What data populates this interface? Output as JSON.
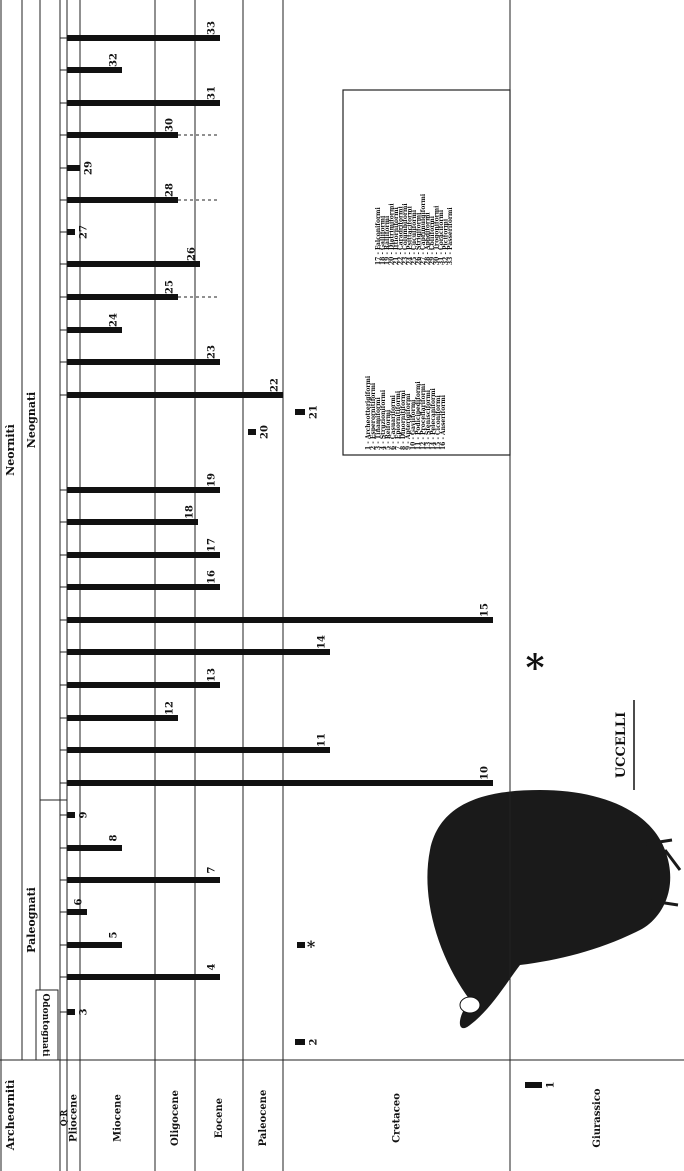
{
  "title": "UCCELLI",
  "groups": {
    "neornithes": "Neornitì",
    "archeornithes": "Archeornitì",
    "paleognathae": "Paleognati",
    "neognathae": "Neognati",
    "odontognathae": "Odontognati"
  },
  "periods": [
    "Q·R",
    "Pliocene",
    "Miocene",
    "Oligocene",
    "Eocene",
    "Paleocene",
    "Cretaceo",
    "Giurassico"
  ],
  "bar_labels": [
    "1",
    "2",
    "3",
    "4",
    "5",
    "6",
    "7",
    "8",
    "9",
    "10",
    "11",
    "12",
    "13",
    "14",
    "15",
    "16",
    "17",
    "18",
    "19",
    "20",
    "21",
    "22",
    "23",
    "24",
    "25",
    "26",
    "27",
    "28",
    "29",
    "30",
    "31",
    "32",
    "33"
  ],
  "uncertain_mark": "*",
  "big_mark": "*",
  "legend": [
    "1 - Archeotterigiformi",
    "2 - Esperornitiformi",
    "3 - Tinamiformi",
    "4 - Struzioniformi",
    "5 - Reiformi",
    "6 - Casuariformi",
    "7 - Epiornitiformi",
    "8 - Dinornitiformi",
    "9 - Apterigiformi",
    "10 - Gaviiformi",
    "11 - Podicipediformi",
    "12 - Procellariformi",
    "13 - Sfenisciformi",
    "14 - Pelecaniformi",
    "15 - Ciconiformi",
    "16 - Anseriformi",
    "17 - Falconiformi",
    "18 - Galliformi",
    "19 - Ralliformi",
    "20 - Diatrimiformi",
    "21 - Ittiorniformi",
    "22 - Caradriformi",
    "23 - Columbiformi",
    "24 - Psittaciformi",
    "25 - Cuculiformi",
    "26 - Strigiformi",
    "27 - Caprimulgiformi",
    "28 - Apodiformi",
    "29 - Coliiformi",
    "30 - Trogoniformi",
    "31 - Coraciformi",
    "32 - Piciformi",
    "33 - Passeriformi"
  ]
}
